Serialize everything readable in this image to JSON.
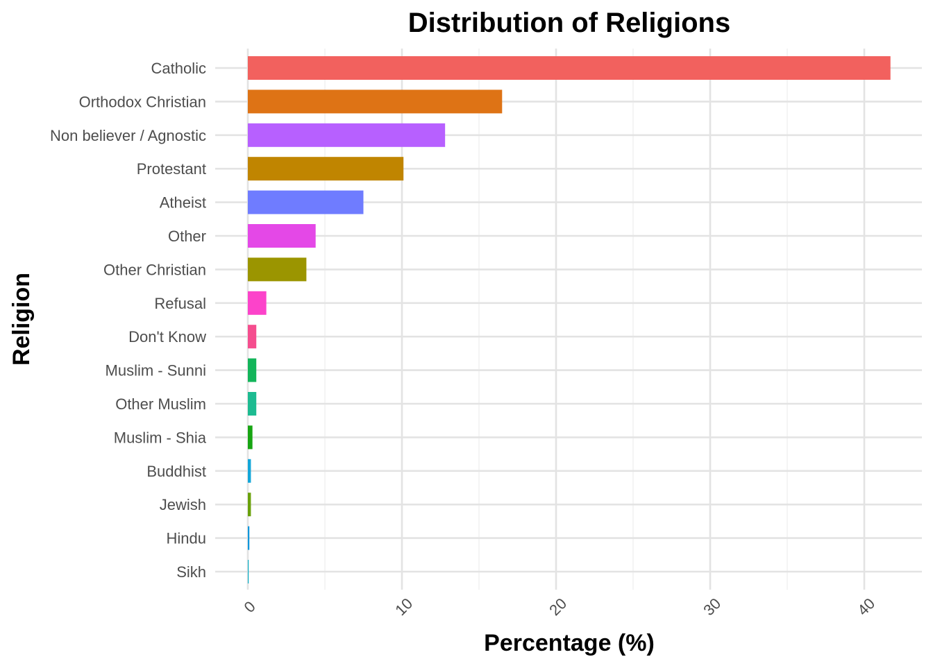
{
  "chart_data": {
    "type": "bar",
    "orientation": "horizontal",
    "title": "Distribution of Religions",
    "xlabel": "Percentage (%)",
    "ylabel": "Religion",
    "xlim": [
      0,
      42
    ],
    "x_ticks": [
      0,
      10,
      20,
      30,
      40
    ],
    "x_tick_labels": [
      "0",
      "10",
      "20",
      "30",
      "40"
    ],
    "grid": true,
    "legend": "none",
    "categories": [
      "Catholic",
      "Orthodox Christian",
      "Non believer / Agnostic",
      "Protestant",
      "Atheist",
      "Other",
      "Other Christian",
      "Refusal",
      "Don't Know",
      "Muslim - Sunni",
      "Other Muslim",
      "Muslim - Shia",
      "Buddhist",
      "Jewish",
      "Hindu",
      "Sikh"
    ],
    "values": [
      41.7,
      16.5,
      12.8,
      10.1,
      7.5,
      4.4,
      3.8,
      1.2,
      0.55,
      0.55,
      0.55,
      0.3,
      0.2,
      0.2,
      0.1,
      0.05
    ],
    "colors": [
      "#F2615E",
      "#DE7315",
      "#B760FF",
      "#C08500",
      "#6F7CFF",
      "#E448E7",
      "#9B9500",
      "#FC43CA",
      "#F54D8E",
      "#13B55A",
      "#1DBB91",
      "#18A513",
      "#13A6D9",
      "#6AA10B",
      "#1097DB",
      "#0DAFC7"
    ]
  }
}
